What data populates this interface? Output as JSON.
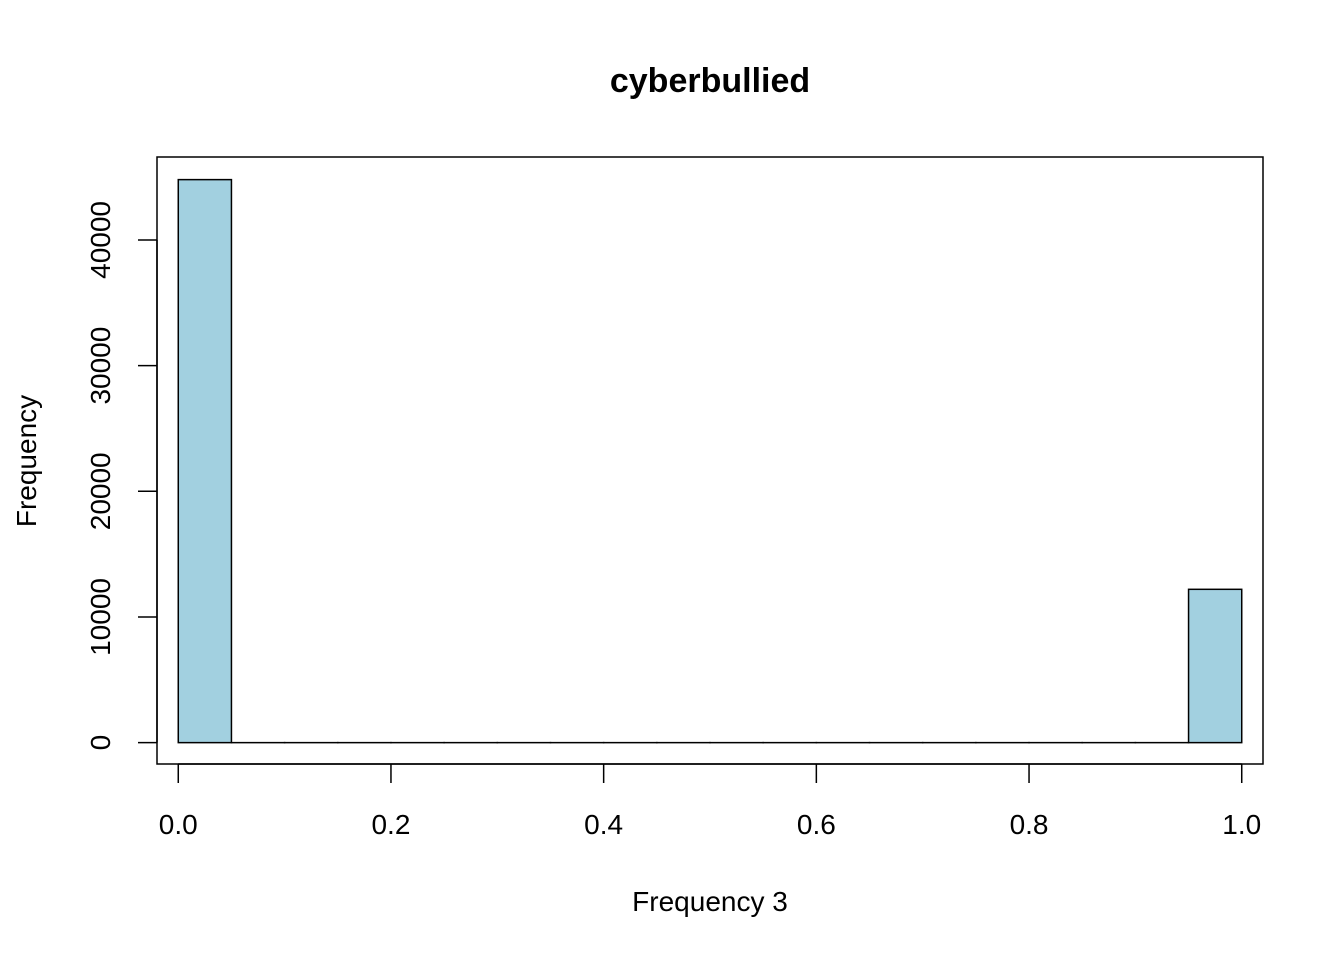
{
  "chart_data": {
    "type": "bar",
    "title": "cyberbullied",
    "xlabel": "Frequency 3",
    "ylabel": "Frequency",
    "bin_width": 0.05,
    "bins": [
      {
        "start": 0.0,
        "end": 0.05,
        "count": 44800
      },
      {
        "start": 0.05,
        "end": 0.1,
        "count": 0
      },
      {
        "start": 0.1,
        "end": 0.15,
        "count": 0
      },
      {
        "start": 0.15,
        "end": 0.2,
        "count": 0
      },
      {
        "start": 0.2,
        "end": 0.25,
        "count": 0
      },
      {
        "start": 0.25,
        "end": 0.3,
        "count": 0
      },
      {
        "start": 0.3,
        "end": 0.35,
        "count": 0
      },
      {
        "start": 0.35,
        "end": 0.4,
        "count": 0
      },
      {
        "start": 0.4,
        "end": 0.45,
        "count": 0
      },
      {
        "start": 0.45,
        "end": 0.5,
        "count": 0
      },
      {
        "start": 0.5,
        "end": 0.55,
        "count": 0
      },
      {
        "start": 0.55,
        "end": 0.6,
        "count": 0
      },
      {
        "start": 0.6,
        "end": 0.65,
        "count": 0
      },
      {
        "start": 0.65,
        "end": 0.7,
        "count": 0
      },
      {
        "start": 0.7,
        "end": 0.75,
        "count": 0
      },
      {
        "start": 0.75,
        "end": 0.8,
        "count": 0
      },
      {
        "start": 0.8,
        "end": 0.85,
        "count": 0
      },
      {
        "start": 0.85,
        "end": 0.9,
        "count": 0
      },
      {
        "start": 0.9,
        "end": 0.95,
        "count": 0
      },
      {
        "start": 0.95,
        "end": 1.0,
        "count": 12200
      }
    ],
    "xlim": [
      -0.02,
      1.02
    ],
    "ylim": [
      -1700,
      46600
    ],
    "x_ticks": [
      {
        "value": 0.0,
        "label": "0.0"
      },
      {
        "value": 0.2,
        "label": "0.2"
      },
      {
        "value": 0.4,
        "label": "0.4"
      },
      {
        "value": 0.6,
        "label": "0.6"
      },
      {
        "value": 0.8,
        "label": "0.8"
      },
      {
        "value": 1.0,
        "label": "1.0"
      }
    ],
    "y_ticks": [
      {
        "value": 0,
        "label": "0"
      },
      {
        "value": 10000,
        "label": "10000"
      },
      {
        "value": 20000,
        "label": "20000"
      },
      {
        "value": 30000,
        "label": "30000"
      },
      {
        "value": 40000,
        "label": "40000"
      }
    ],
    "bar_color": "#a2d0e0",
    "bar_stroke": "#000000",
    "grid": false,
    "legend": "none"
  }
}
